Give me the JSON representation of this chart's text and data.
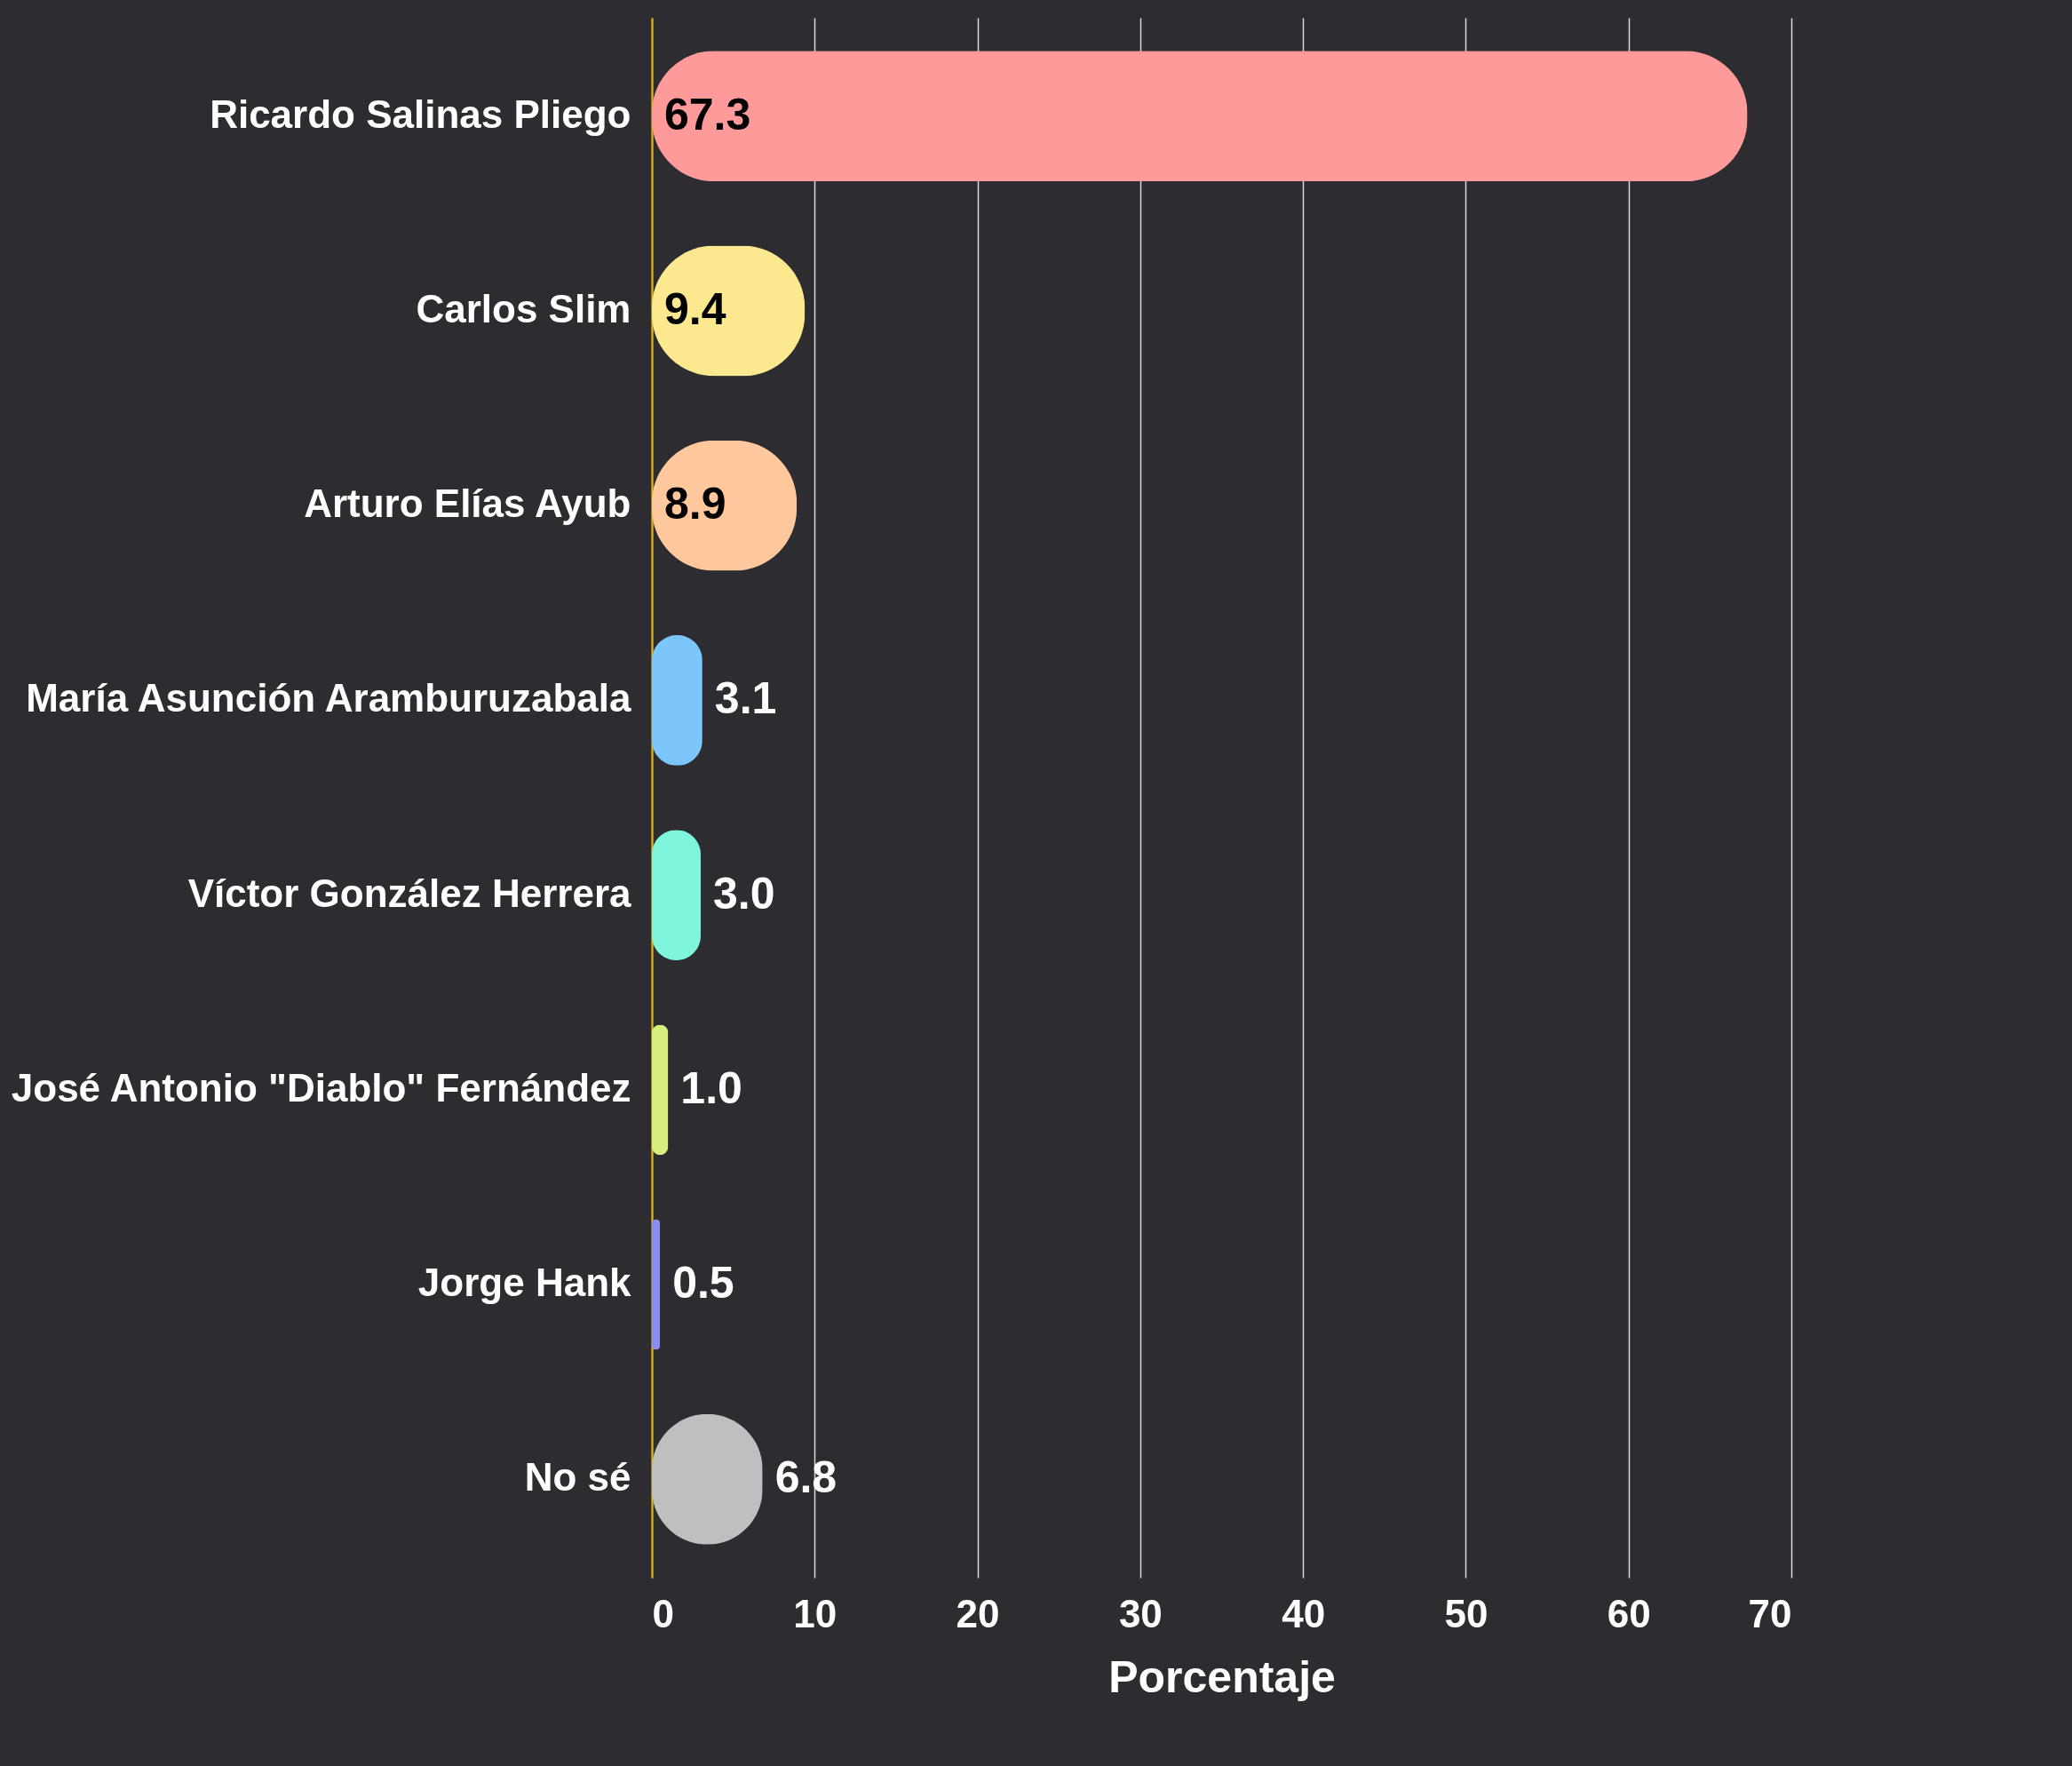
{
  "chart_data": {
    "type": "bar",
    "orientation": "horizontal",
    "xlabel": "Porcentaje",
    "categories": [
      "Ricardo Salinas Pliego",
      "Carlos Slim",
      "Arturo Elías Ayub",
      "María Asunción Aramburuzabala",
      "Víctor González Herrera",
      "José Antonio \"Diablo\" Fernández",
      "Jorge Hank",
      "No sé"
    ],
    "values": [
      67.3,
      9.4,
      8.9,
      3.1,
      3.0,
      1.0,
      0.5,
      6.8
    ],
    "colors": [
      "#ff9a9a",
      "#fce98f",
      "#ffc89c",
      "#7cc6fb",
      "#7ff5dc",
      "#d8f080",
      "#8a8cf0",
      "#bfbfbf"
    ],
    "xlim": [
      0,
      70
    ],
    "xticks": [
      0,
      10,
      20,
      30,
      40,
      50,
      60,
      70
    ],
    "grid": "x",
    "value_labels": [
      "67.3",
      "9.4",
      "8.9",
      "3.1",
      "3.0",
      "1.0",
      "0.5",
      "6.8"
    ]
  }
}
